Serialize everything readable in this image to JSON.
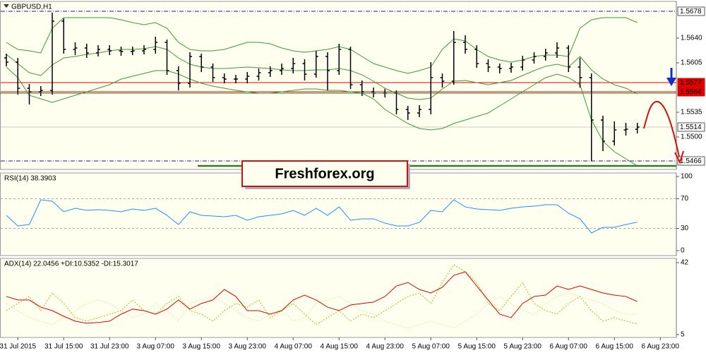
{
  "chart_data": [
    {
      "type": "ohlc",
      "title": "GBPUSD,H1",
      "open": [
        1.5612,
        1.5606,
        1.5569,
        1.5564,
        1.5566,
        1.5664,
        1.5624,
        1.5626,
        1.5619,
        1.5624,
        1.5622,
        1.5621,
        1.5622,
        1.5624,
        1.5634,
        1.5594,
        1.5576,
        1.5614,
        1.5599,
        1.5584,
        1.5582,
        1.5582,
        1.5586,
        1.5591,
        1.5594,
        1.5597,
        1.5604,
        1.5589,
        1.5614,
        1.5594,
        1.5624,
        1.5574,
        1.5564,
        1.5562,
        1.5562,
        1.5539,
        1.5534,
        1.5539,
        1.5584,
        1.5579,
        1.5634,
        1.5624,
        1.5604,
        1.5599,
        1.5597,
        1.5599,
        1.5609,
        1.5614,
        1.5619,
        1.5626,
        1.5599,
        1.5584,
        1.5524,
        1.5494,
        1.551,
        1.5511
      ],
      "high": [
        1.5618,
        1.5612,
        1.5575,
        1.5572,
        1.5676,
        1.5668,
        1.5634,
        1.5632,
        1.563,
        1.563,
        1.5628,
        1.5628,
        1.563,
        1.5642,
        1.5638,
        1.56,
        1.562,
        1.5618,
        1.5604,
        1.559,
        1.5588,
        1.5592,
        1.5597,
        1.56,
        1.5604,
        1.5612,
        1.561,
        1.5622,
        1.562,
        1.5632,
        1.5628,
        1.558,
        1.557,
        1.5568,
        1.5566,
        1.5544,
        1.5545,
        1.5606,
        1.559,
        1.565,
        1.5644,
        1.563,
        1.561,
        1.5604,
        1.5605,
        1.5615,
        1.562,
        1.5625,
        1.5634,
        1.563,
        1.5612,
        1.559,
        1.553,
        1.5522,
        1.552,
        1.552
      ],
      "low": [
        1.56,
        1.556,
        1.5546,
        1.5558,
        1.556,
        1.5618,
        1.5616,
        1.5612,
        1.5614,
        1.5616,
        1.5615,
        1.5616,
        1.5617,
        1.5618,
        1.5588,
        1.5566,
        1.557,
        1.5592,
        1.5578,
        1.5576,
        1.5576,
        1.5576,
        1.558,
        1.5585,
        1.5588,
        1.559,
        1.558,
        1.5584,
        1.5566,
        1.5588,
        1.5568,
        1.5558,
        1.5556,
        1.5556,
        1.5532,
        1.5524,
        1.5528,
        1.5532,
        1.557,
        1.5574,
        1.5618,
        1.5598,
        1.5592,
        1.559,
        1.5591,
        1.5594,
        1.5604,
        1.5608,
        1.5612,
        1.5592,
        1.557,
        1.5466,
        1.548,
        1.5488,
        1.5502,
        1.5505
      ],
      "close": [
        1.5606,
        1.5569,
        1.5564,
        1.5566,
        1.5664,
        1.5624,
        1.5626,
        1.5619,
        1.5624,
        1.5622,
        1.5621,
        1.5622,
        1.5624,
        1.5634,
        1.5594,
        1.5576,
        1.5614,
        1.5599,
        1.5584,
        1.5582,
        1.5582,
        1.5586,
        1.5591,
        1.5594,
        1.5597,
        1.5604,
        1.5589,
        1.5614,
        1.5594,
        1.5624,
        1.5574,
        1.5564,
        1.5562,
        1.5562,
        1.5539,
        1.5534,
        1.5539,
        1.5584,
        1.5579,
        1.5634,
        1.5624,
        1.5604,
        1.5599,
        1.5597,
        1.5599,
        1.5609,
        1.5614,
        1.5619,
        1.5626,
        1.5599,
        1.5584,
        1.5524,
        1.5494,
        1.551,
        1.5511,
        1.5514
      ],
      "color": "#000000",
      "series": [
        {
          "color": "#3a9a3a",
          "style": "solid",
          "values": [
            1.5634,
            1.5624,
            1.5622,
            1.5619,
            1.5654,
            1.5669,
            1.5669,
            1.5669,
            1.5669,
            1.5669,
            1.5666,
            1.5662,
            1.5659,
            1.5662,
            1.5654,
            1.5634,
            1.5624,
            1.5622,
            1.5622,
            1.5624,
            1.5629,
            1.5634,
            1.5634,
            1.5632,
            1.5626,
            1.5622,
            1.562,
            1.5622,
            1.5624,
            1.5628,
            1.5624,
            1.5614,
            1.5604,
            1.5599,
            1.5594,
            1.559,
            1.5594,
            1.5599,
            1.5624,
            1.5639,
            1.5636,
            1.5624,
            1.5614,
            1.5609,
            1.5606,
            1.5609,
            1.5614,
            1.5616,
            1.5616,
            1.5614,
            1.5654,
            1.5666,
            1.5669,
            1.5669,
            1.5669,
            1.5662
          ]
        },
        {
          "color": "#3a9a3a",
          "style": "solid",
          "values": [
            1.5617,
            1.5604,
            1.5591,
            1.5587,
            1.5602,
            1.5612,
            1.5614,
            1.5617,
            1.5619,
            1.5622,
            1.5624,
            1.5624,
            1.5625,
            1.5628,
            1.5624,
            1.5612,
            1.5603,
            1.5599,
            1.5597,
            1.5597,
            1.5598,
            1.5599,
            1.5598,
            1.5597,
            1.5595,
            1.5594,
            1.5594,
            1.5595,
            1.5595,
            1.5597,
            1.5594,
            1.5588,
            1.5579,
            1.5569,
            1.5562,
            1.5555,
            1.5553,
            1.5555,
            1.5568,
            1.5579,
            1.558,
            1.5577,
            1.5574,
            1.5577,
            1.558,
            1.5587,
            1.5594,
            1.56,
            1.5603,
            1.5599,
            1.5614,
            1.5595,
            1.5582,
            1.5574,
            1.5569,
            1.5561
          ]
        },
        {
          "color": "#3a9a3a",
          "style": "solid",
          "values": [
            1.5599,
            1.5584,
            1.5559,
            1.5554,
            1.5549,
            1.5554,
            1.5559,
            1.5564,
            1.5569,
            1.5574,
            1.5582,
            1.5586,
            1.559,
            1.5594,
            1.5594,
            1.5589,
            1.5582,
            1.5576,
            1.5572,
            1.5569,
            1.5566,
            1.5564,
            1.5562,
            1.5562,
            1.5564,
            1.5566,
            1.5568,
            1.5568,
            1.5566,
            1.5566,
            1.5564,
            1.5562,
            1.5554,
            1.5539,
            1.5529,
            1.5519,
            1.5512,
            1.551,
            1.5512,
            1.5519,
            1.5524,
            1.5529,
            1.5534,
            1.5544,
            1.5554,
            1.5564,
            1.5574,
            1.5584,
            1.5589,
            1.5584,
            1.5574,
            1.5524,
            1.5494,
            1.5479,
            1.5469,
            1.5459
          ]
        }
      ],
      "ylim": [
        1.5454,
        1.5692
      ],
      "yticks": [
        {
          "value": 1.564,
          "label": "1.5640"
        },
        1.5605,
        1.5535,
        {
          "value": 1.55,
          "label": "1.5500"
        }
      ],
      "levels": [
        {
          "value": 1.5678,
          "color": "#1a1aa0",
          "style": "dashdot",
          "box": "#ffffff",
          "text_color": "#000000"
        },
        {
          "value": 1.5577,
          "color": "#e00000",
          "style": "solid",
          "box": "#e00000",
          "text_color": "#ffffff"
        },
        {
          "value": 1.5564,
          "color": "#e00000",
          "style": "solid",
          "box": "#e00000",
          "text_color": "#ffffff"
        },
        {
          "value": 1.5514,
          "color": "#c8c8c8",
          "style": "solid",
          "box": "#ffffff",
          "text_color": "#000000"
        },
        {
          "value": 1.5466,
          "color": "#1a1aa0",
          "style": "dashdot",
          "box": "#ffffff",
          "text_color": "#000000"
        }
      ]
    },
    {
      "type": "line",
      "title": "RSI(14) 38.3903",
      "series": [
        {
          "color": "#1e90ff",
          "style": "solid",
          "values": [
            47.6,
            33.3,
            35.2,
            68.6,
            66.7,
            52.4,
            57.1,
            54.3,
            55.2,
            54.3,
            52.4,
            56.2,
            54.3,
            57.1,
            47.6,
            35.2,
            52.4,
            47.6,
            46.7,
            45.7,
            47.6,
            41.0,
            45.7,
            47.6,
            49.5,
            54.3,
            47.6,
            57.1,
            47.6,
            59.0,
            41.0,
            42.9,
            42.9,
            37.1,
            33.3,
            33.3,
            38.1,
            54.3,
            52.4,
            68.6,
            59.0,
            56.2,
            55.2,
            54.3,
            57.1,
            59.0,
            60.0,
            61.9,
            61.9,
            50.5,
            42.9,
            23.8,
            31.4,
            31.4,
            35.2,
            38.4
          ]
        }
      ],
      "ylim": [
        -6.7,
        104.8
      ],
      "yticks": [
        100,
        70,
        30,
        0
      ],
      "levels": [
        {
          "value": 70,
          "color": "#a8a8a8",
          "style": "dash"
        },
        {
          "value": 30,
          "color": "#a8a8a8",
          "style": "dash"
        }
      ]
    },
    {
      "type": "line",
      "title": "ADX(14) 22.0456 +DI:10.5352 -DI:15.3017",
      "categories": [
        null,
        "31 Jul 2015",
        null,
        null,
        null,
        "31 Jul 15:00",
        null,
        null,
        null,
        "31 Jul 23:00",
        null,
        null,
        null,
        "3 Aug 07:00",
        null,
        null,
        null,
        "3 Aug 15:00",
        null,
        null,
        null,
        "3 Aug 23:00",
        null,
        null,
        null,
        "4 Aug 07:00",
        null,
        null,
        null,
        "4 Aug 15:00",
        null,
        null,
        null,
        "4 Aug 23:00",
        null,
        null,
        null,
        "5 Aug 07:00",
        null,
        null,
        null,
        "5 Aug 15:00",
        null,
        null,
        null,
        "5 Aug 23:00",
        null,
        null,
        null,
        "6 Aug 07:00",
        null,
        null,
        null,
        "6 Aug 15:00",
        null,
        null,
        null,
        "6 Aug 23:00"
      ],
      "series": [
        {
          "color": "#e8e8b0",
          "style": "dot",
          "values": [
            21.0,
            17.3,
            13.7,
            11.9,
            10.1,
            13.7,
            17.3,
            21.0,
            22.8,
            21.0,
            17.3,
            13.7,
            15.5,
            21.0,
            17.3,
            11.9,
            21.0,
            22.8,
            24.6,
            21.0,
            17.3,
            13.7,
            11.9,
            15.5,
            17.3,
            11.9,
            13.7,
            21.0,
            22.8,
            24.6,
            21.0,
            17.3,
            15.5,
            11.9,
            10.1,
            8.3,
            10.1,
            11.9,
            10.1,
            8.3,
            11.9,
            15.5,
            21.0,
            24.6,
            21.0,
            17.3,
            15.5,
            21.0,
            24.6,
            26.4,
            24.6,
            22.8,
            21.0,
            17.3,
            15.5,
            15.3,
            null,
            null
          ]
        },
        {
          "color": "#a8c838",
          "style": "dot",
          "values": [
            17.3,
            21.0,
            24.6,
            17.3,
            26.4,
            21.0,
            13.7,
            11.9,
            13.7,
            15.5,
            17.3,
            22.8,
            17.3,
            15.5,
            21.0,
            24.6,
            17.3,
            15.5,
            11.9,
            17.3,
            21.0,
            19.1,
            22.8,
            13.7,
            17.3,
            21.0,
            15.5,
            10.1,
            13.7,
            17.3,
            11.9,
            15.5,
            13.7,
            17.3,
            21.0,
            24.6,
            26.4,
            21.0,
            31.8,
            40.9,
            37.3,
            31.8,
            21.0,
            17.3,
            24.6,
            31.8,
            21.0,
            17.3,
            15.5,
            21.0,
            24.6,
            17.3,
            11.9,
            13.7,
            11.9,
            10.5,
            null,
            null
          ]
        },
        {
          "color": "#e00000",
          "style": "solid",
          "values": [
            24.6,
            22.8,
            22.8,
            19.1,
            17.3,
            14.4,
            11.9,
            10.8,
            11.2,
            11.9,
            15.5,
            18.1,
            17.3,
            15.5,
            18.1,
            22.8,
            18.1,
            21.0,
            22.8,
            28.2,
            24.6,
            17.3,
            17.3,
            15.5,
            17.3,
            22.8,
            25.3,
            22.8,
            19.1,
            17.3,
            20.2,
            21.0,
            21.7,
            24.6,
            30.0,
            31.8,
            28.2,
            26.4,
            29.3,
            35.5,
            37.3,
            30.0,
            22.8,
            15.5,
            13.7,
            21.0,
            24.6,
            25.3,
            30.0,
            28.2,
            30.0,
            28.2,
            26.4,
            25.3,
            24.6,
            22.0,
            null,
            null
          ]
        }
      ],
      "ylim": [
        3.5,
        44.2
      ],
      "yticks": [
        42,
        5
      ]
    }
  ],
  "watermark": "Freshforex.org"
}
